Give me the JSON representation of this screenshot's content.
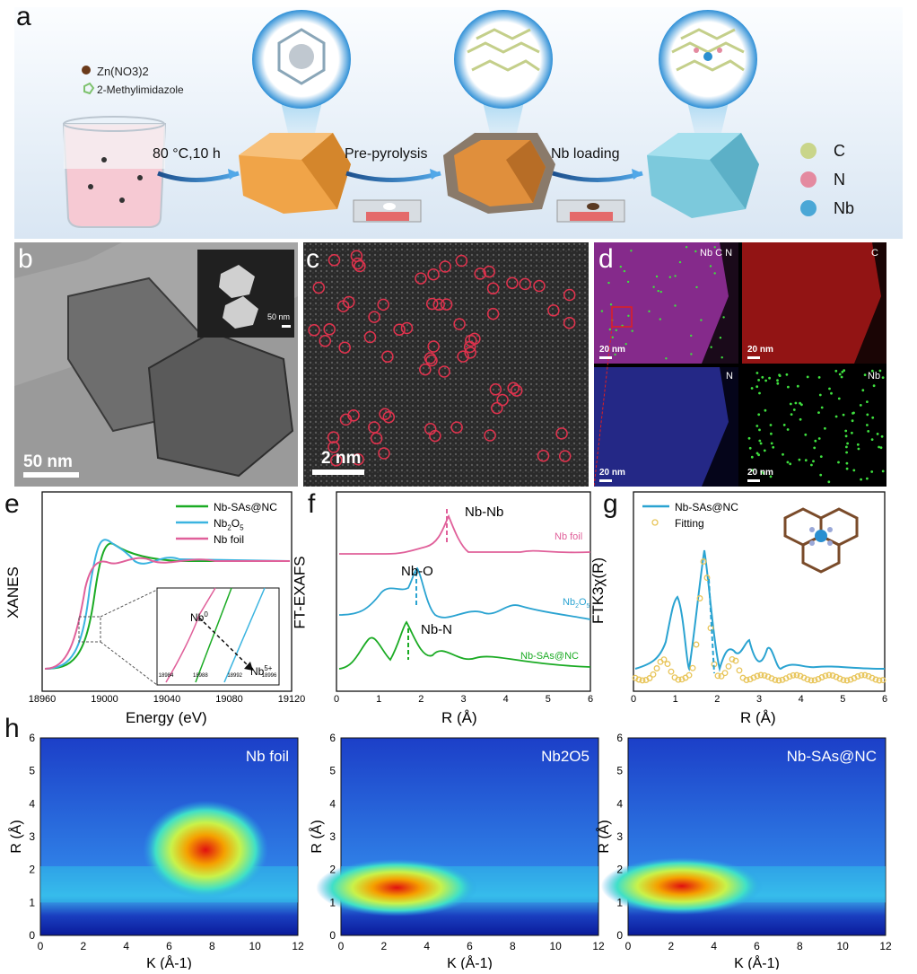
{
  "panel_labels": {
    "a": "a",
    "b": "b",
    "c": "c",
    "d": "d",
    "e": "e",
    "f": "f",
    "g": "g",
    "h": "h"
  },
  "schematic": {
    "reagent1": "Zn(NO3)2",
    "reagent2": "2-Methylimidazole",
    "step1": "80 °C,10 h",
    "step2": "Pre-pyrolysis",
    "step3": "Nb loading",
    "legend": [
      {
        "label": "C",
        "color": "#c9d58a"
      },
      {
        "label": "N",
        "color": "#e48aa0"
      },
      {
        "label": "Nb",
        "color": "#4aa7d6"
      }
    ]
  },
  "panel_b": {
    "scale": "50 nm",
    "inset_scale": "50 nm"
  },
  "panel_c": {
    "scale": "2 nm"
  },
  "panel_d": {
    "maps": [
      {
        "tag": "Nb C N",
        "scale": "20 nm",
        "color": "#c43cc4"
      },
      {
        "tag": "C",
        "scale": "20 nm",
        "color": "#c51a1a"
      },
      {
        "tag": "N",
        "scale": "20 nm",
        "color": "#2a3fb0"
      },
      {
        "tag": "Nb",
        "scale": "20 nm",
        "color": "#33d433"
      }
    ]
  },
  "chart_data": [
    {
      "id": "e",
      "type": "line",
      "xlabel": "Energy (eV)",
      "ylabel": "XANES",
      "xlim": [
        18960,
        19120
      ],
      "xticks": [
        "18960",
        "19000",
        "19040",
        "19080",
        "19120"
      ],
      "series": [
        {
          "name": "Nb-SAs@NC",
          "color": "#1bab24"
        },
        {
          "name": "Nb2O5",
          "color": "#3bb4e0"
        },
        {
          "name": "Nb foil",
          "color": "#e0609a"
        }
      ],
      "inset": {
        "labels": [
          "Nb0",
          "Nb5+"
        ],
        "xticks": [
          "18984",
          "18988",
          "18992",
          "18996"
        ]
      }
    },
    {
      "id": "f",
      "type": "line",
      "xlabel": "R (Å)",
      "ylabel": "FT-EXAFS",
      "xlim": [
        0,
        6
      ],
      "xticks": [
        "0",
        "1",
        "2",
        "3",
        "4",
        "5",
        "6"
      ],
      "series": [
        {
          "name": "Nb foil",
          "color": "#e0609a",
          "peak_label": "Nb-Nb",
          "peak_r": 2.6
        },
        {
          "name": "Nb2O5",
          "color": "#2aa3d1",
          "peak_label": "Nb-O",
          "peak_r": 1.75
        },
        {
          "name": "Nb-SAs@NC",
          "color": "#1bab24",
          "peak_label": "Nb-N",
          "peak_r": 1.6
        }
      ]
    },
    {
      "id": "g",
      "type": "line",
      "xlabel": "R (Å)",
      "ylabel": "FTK3χ(R)",
      "xlim": [
        0,
        6
      ],
      "xticks": [
        "0",
        "1",
        "2",
        "3",
        "4",
        "5",
        "6"
      ],
      "series": [
        {
          "name": "Nb-SAs@NC",
          "color": "#2aa3d1"
        },
        {
          "name": "Fitting",
          "color": "#e8c55a"
        }
      ]
    },
    {
      "id": "h",
      "type": "heatmap",
      "xlabel": "K (Å-1)",
      "ylabel": "R (Å)",
      "xlim": [
        0,
        12
      ],
      "ylim": [
        0,
        6
      ],
      "xticks": [
        "0",
        "2",
        "4",
        "6",
        "8",
        "10",
        "12"
      ],
      "yticks": [
        "0",
        "1",
        "2",
        "3",
        "4",
        "5",
        "6"
      ],
      "maps": [
        {
          "title": "Nb foil",
          "hotspot_k": 7.7,
          "hotspot_r": 2.6
        },
        {
          "title": "Nb2O5",
          "hotspot_k": 2.6,
          "hotspot_r": 1.45
        },
        {
          "title": "Nb-SAs@NC",
          "hotspot_k": 2.5,
          "hotspot_r": 1.5
        }
      ]
    }
  ]
}
